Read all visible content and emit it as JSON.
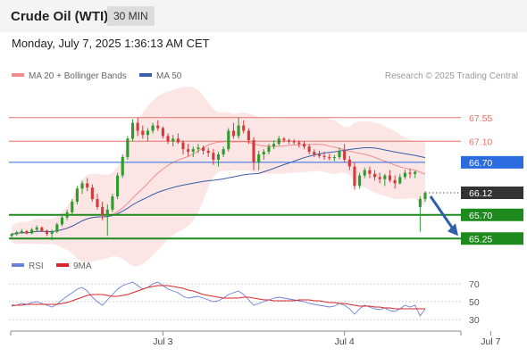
{
  "header": {
    "title": "Crude Oil (WTI)",
    "timeframe": "30 MIN"
  },
  "datetime": "Monday, July 7, 2025 1:36:13 AM CET",
  "legend": {
    "ma20": {
      "label": "MA 20 + Bollinger Bands",
      "color": "#f08c8c"
    },
    "ma50": {
      "label": "MA 50",
      "color": "#3a5ea8"
    },
    "credit": "Research © 2025 Trading Central"
  },
  "rsi_legend": {
    "rsi": {
      "label": "RSI",
      "color": "#6a7fd8"
    },
    "ma9": {
      "label": "9MA",
      "color": "#d9262a"
    }
  },
  "chart_data": {
    "type": "candlestick",
    "price_range": [
      65.0,
      67.75
    ],
    "levels": [
      {
        "value": 67.55,
        "label": "67.55",
        "style": "resistance-thin",
        "color": "#e8706a"
      },
      {
        "value": 67.1,
        "label": "67.10",
        "style": "resistance-thin",
        "color": "#e8706a"
      },
      {
        "value": 66.7,
        "label": "66.70",
        "style": "pivot",
        "color": "#2a6be0"
      },
      {
        "value": 66.12,
        "label": "66.12",
        "style": "last-price",
        "color": "#333333"
      },
      {
        "value": 65.7,
        "label": "65.70",
        "style": "support",
        "color": "#1e8a1e"
      },
      {
        "value": 65.25,
        "label": "65.25",
        "style": "support",
        "color": "#1e8a1e"
      }
    ],
    "x_ticks": [
      {
        "index": 30,
        "label": "Jul 3"
      },
      {
        "index": 66,
        "label": "Jul 4"
      },
      {
        "index": 95,
        "label": "Jul 7"
      }
    ],
    "candles": [
      [
        65.3,
        65.36,
        65.27,
        65.33
      ],
      [
        65.33,
        65.4,
        65.3,
        65.37
      ],
      [
        65.37,
        65.43,
        65.34,
        65.39
      ],
      [
        65.39,
        65.41,
        65.33,
        65.35
      ],
      [
        65.35,
        65.45,
        65.33,
        65.42
      ],
      [
        65.42,
        65.5,
        65.38,
        65.46
      ],
      [
        65.46,
        65.48,
        65.38,
        65.4
      ],
      [
        65.4,
        65.42,
        65.3,
        65.34
      ],
      [
        65.34,
        65.42,
        65.22,
        65.38
      ],
      [
        65.38,
        65.55,
        65.35,
        65.52
      ],
      [
        65.52,
        65.68,
        65.48,
        65.65
      ],
      [
        65.65,
        65.8,
        65.6,
        65.75
      ],
      [
        65.75,
        66.0,
        65.7,
        65.95
      ],
      [
        65.95,
        66.25,
        65.9,
        66.2
      ],
      [
        66.2,
        66.35,
        66.1,
        66.3
      ],
      [
        66.3,
        66.4,
        66.15,
        66.22
      ],
      [
        66.22,
        66.28,
        65.95,
        66.0
      ],
      [
        66.0,
        66.1,
        65.8,
        65.85
      ],
      [
        65.85,
        65.95,
        65.6,
        65.7
      ],
      [
        65.7,
        65.9,
        65.3,
        65.8
      ],
      [
        65.8,
        66.1,
        65.75,
        66.05
      ],
      [
        66.05,
        66.5,
        66.0,
        66.45
      ],
      [
        66.45,
        66.85,
        66.4,
        66.8
      ],
      [
        66.8,
        67.2,
        66.75,
        67.15
      ],
      [
        67.15,
        67.52,
        67.1,
        67.45
      ],
      [
        67.45,
        67.55,
        67.2,
        67.3
      ],
      [
        67.3,
        67.4,
        67.15,
        67.22
      ],
      [
        67.22,
        67.35,
        67.1,
        67.3
      ],
      [
        67.3,
        67.45,
        67.25,
        67.4
      ],
      [
        67.4,
        67.5,
        67.3,
        67.35
      ],
      [
        67.35,
        67.38,
        67.15,
        67.2
      ],
      [
        67.2,
        67.25,
        67.05,
        67.1
      ],
      [
        67.1,
        67.22,
        67.0,
        67.15
      ],
      [
        67.15,
        67.25,
        67.05,
        67.08
      ],
      [
        67.08,
        67.12,
        66.85,
        66.95
      ],
      [
        66.95,
        67.05,
        66.82,
        66.9
      ],
      [
        66.9,
        67.0,
        66.8,
        66.95
      ],
      [
        66.95,
        67.05,
        66.88,
        66.98
      ],
      [
        66.98,
        67.02,
        66.85,
        66.92
      ],
      [
        66.92,
        66.98,
        66.8,
        66.88
      ],
      [
        66.88,
        66.95,
        66.65,
        66.75
      ],
      [
        66.75,
        66.9,
        66.62,
        66.85
      ],
      [
        66.85,
        67.0,
        66.8,
        66.95
      ],
      [
        66.95,
        67.35,
        66.9,
        67.3
      ],
      [
        67.3,
        67.45,
        67.15,
        67.2
      ],
      [
        67.2,
        67.55,
        67.15,
        67.4
      ],
      [
        67.4,
        67.5,
        67.25,
        67.3
      ],
      [
        67.3,
        67.35,
        67.05,
        67.12
      ],
      [
        67.12,
        67.18,
        66.55,
        66.7
      ],
      [
        66.7,
        66.92,
        66.55,
        66.85
      ],
      [
        66.85,
        66.95,
        66.75,
        66.9
      ],
      [
        66.9,
        67.05,
        66.85,
        67.0
      ],
      [
        67.0,
        67.12,
        66.95,
        67.05
      ],
      [
        67.05,
        67.2,
        67.02,
        67.15
      ],
      [
        67.15,
        67.18,
        67.08,
        67.12
      ],
      [
        67.12,
        67.15,
        67.05,
        67.1
      ],
      [
        67.1,
        67.14,
        67.04,
        67.08
      ],
      [
        67.08,
        67.12,
        66.98,
        67.05
      ],
      [
        67.05,
        67.1,
        66.95,
        67.0
      ],
      [
        67.0,
        67.05,
        66.85,
        66.9
      ],
      [
        66.9,
        66.95,
        66.8,
        66.85
      ],
      [
        66.85,
        66.92,
        66.78,
        66.82
      ],
      [
        66.82,
        66.9,
        66.75,
        66.8
      ],
      [
        66.8,
        66.86,
        66.74,
        66.78
      ],
      [
        66.78,
        66.84,
        66.72,
        66.8
      ],
      [
        66.8,
        66.98,
        66.76,
        66.92
      ],
      [
        66.92,
        67.05,
        66.7,
        66.75
      ],
      [
        66.75,
        66.82,
        66.55,
        66.62
      ],
      [
        66.62,
        66.7,
        66.18,
        66.25
      ],
      [
        66.25,
        66.5,
        66.2,
        66.45
      ],
      [
        66.45,
        66.6,
        66.4,
        66.55
      ],
      [
        66.55,
        66.62,
        66.4,
        66.48
      ],
      [
        66.48,
        66.55,
        66.35,
        66.42
      ],
      [
        66.42,
        66.5,
        66.3,
        66.38
      ],
      [
        66.38,
        66.48,
        66.25,
        66.45
      ],
      [
        66.45,
        66.55,
        66.32,
        66.36
      ],
      [
        66.36,
        66.45,
        66.2,
        66.3
      ],
      [
        66.3,
        66.48,
        66.28,
        66.42
      ],
      [
        66.42,
        66.56,
        66.38,
        66.5
      ],
      [
        66.5,
        66.58,
        66.4,
        66.48
      ],
      [
        66.48,
        66.54,
        66.4,
        66.52
      ],
      [
        65.85,
        66.05,
        65.38,
        66.0
      ],
      [
        66.0,
        66.15,
        65.95,
        66.12
      ]
    ]
  },
  "rsi_chart": {
    "type": "line",
    "ylim": [
      20,
      80
    ],
    "levels": [
      70,
      50,
      30
    ],
    "tick_labels": [
      "70",
      "50",
      "30"
    ],
    "rsi": [
      45,
      46,
      48,
      47,
      49,
      50,
      48,
      46,
      44,
      47,
      52,
      56,
      60,
      64,
      66,
      62,
      55,
      50,
      46,
      52,
      58,
      64,
      68,
      70,
      72,
      68,
      64,
      66,
      70,
      72,
      68,
      64,
      62,
      60,
      56,
      54,
      55,
      56,
      54,
      52,
      50,
      51,
      54,
      58,
      60,
      62,
      58,
      52,
      46,
      48,
      50,
      52,
      54,
      55,
      54,
      53,
      52,
      51,
      50,
      48,
      47,
      46,
      45,
      44,
      45,
      48,
      46,
      42,
      36,
      42,
      46,
      44,
      42,
      41,
      43,
      40,
      39,
      42,
      46,
      44,
      46,
      34,
      42
    ],
    "ma9": [
      46,
      46,
      46,
      47,
      47,
      47,
      47,
      47,
      47,
      47,
      48,
      49,
      51,
      53,
      55,
      57,
      58,
      58,
      58,
      57,
      56,
      56,
      57,
      58,
      60,
      62,
      64,
      66,
      67,
      68,
      68,
      68,
      67,
      66,
      65,
      63,
      62,
      60,
      58,
      57,
      56,
      55,
      54,
      54,
      54,
      54,
      55,
      55,
      54,
      53,
      52,
      52,
      51,
      51,
      51,
      51,
      51,
      52,
      52,
      52,
      51,
      51,
      50,
      49,
      49,
      48,
      48,
      47,
      46,
      45,
      45,
      45,
      44,
      44,
      43,
      43,
      42,
      42,
      42,
      42,
      42,
      42,
      42
    ]
  }
}
